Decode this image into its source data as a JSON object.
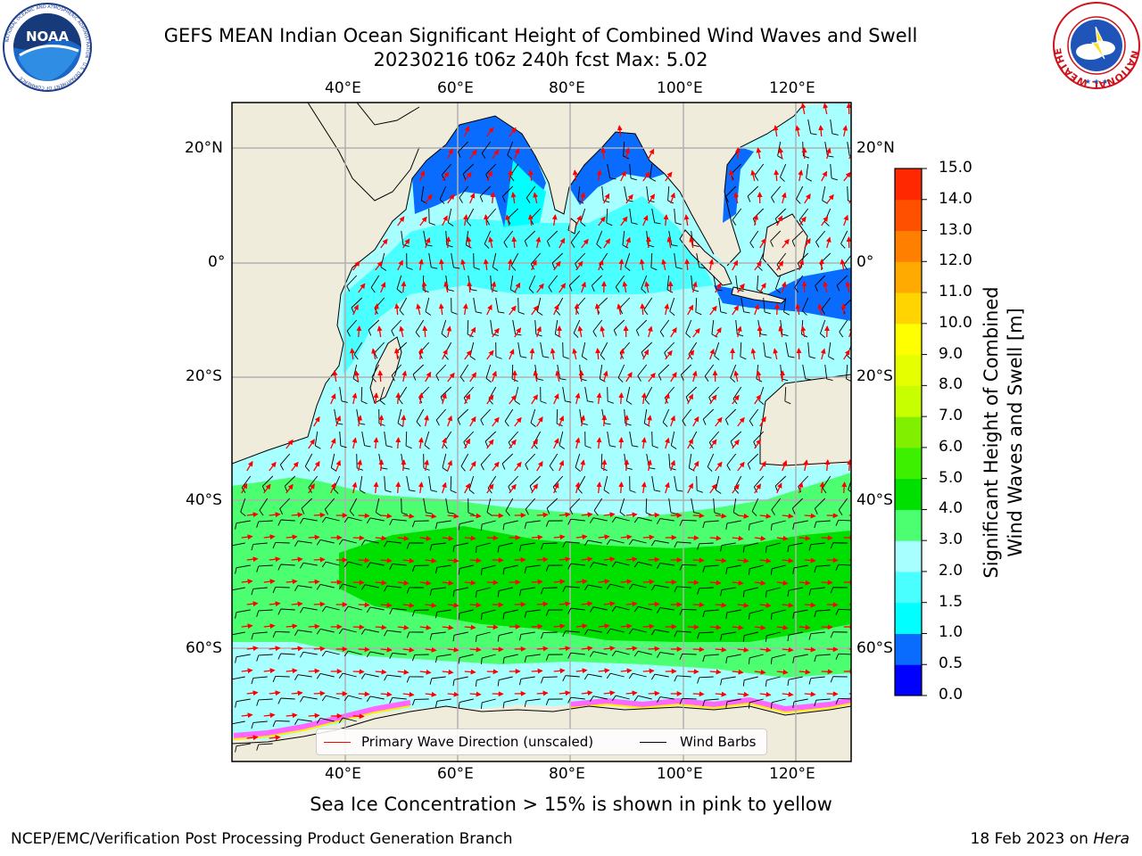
{
  "title": {
    "line1": "GEFS MEAN Indian Ocean Significant Height of Combined Wind Waves and Swell",
    "line2": "20230216 t06z 240h fcst   Max: 5.02"
  },
  "map": {
    "lon_range": [
      20,
      130
    ],
    "lat_range": [
      -88,
      28
    ],
    "lon_ticks": [
      "40°E",
      "60°E",
      "80°E",
      "100°E",
      "120°E"
    ],
    "lat_ticks": [
      "20°N",
      "0°",
      "20°S",
      "40°S",
      "60°S"
    ],
    "land_color": "#efecdc",
    "grid_color": "#b0b0b0",
    "wave_arrow_color": "#ff0000",
    "wind_barb_color": "#000000"
  },
  "colorbar": {
    "title_line1": "Significant Height of Combined",
    "title_line2": "Wind Waves and Swell [m]",
    "ticks": [
      "15.0",
      "14.0",
      "13.0",
      "12.0",
      "11.0",
      "10.0",
      "9.0",
      "8.0",
      "7.0",
      "6.0",
      "5.0",
      "4.0",
      "3.0",
      "2.0",
      "1.5",
      "1.0",
      "0.5",
      "0.0"
    ],
    "colors": [
      "#0000ff",
      "#0a6cff",
      "#00ffff",
      "#4affff",
      "#a8ffff",
      "#4cff70",
      "#00e000",
      "#3cf000",
      "#80f000",
      "#c8ff00",
      "#e6ff00",
      "#ffff00",
      "#ffd400",
      "#ffaa00",
      "#ff8000",
      "#ff5000",
      "#ff2800"
    ]
  },
  "legend": {
    "wave_label": "Primary Wave Direction (unscaled)",
    "wind_label": "Wind Barbs"
  },
  "footer": {
    "center": "Sea Ice Concentration > 15% is shown in pink to yellow",
    "left": "NCEP/EMC/Verification Post Processing Product Generation Branch",
    "date": "18 Feb 2023 on ",
    "host": "Hera"
  },
  "logos": {
    "noaa_text": "NOAA",
    "noaa_ring": "NATIONAL OCEANIC AND ATMOSPHERIC ADMINISTRATION · U.S. DEPARTMENT OF COMMERCE",
    "nws_ring": "NATIONAL WEATHER SERVICE"
  }
}
